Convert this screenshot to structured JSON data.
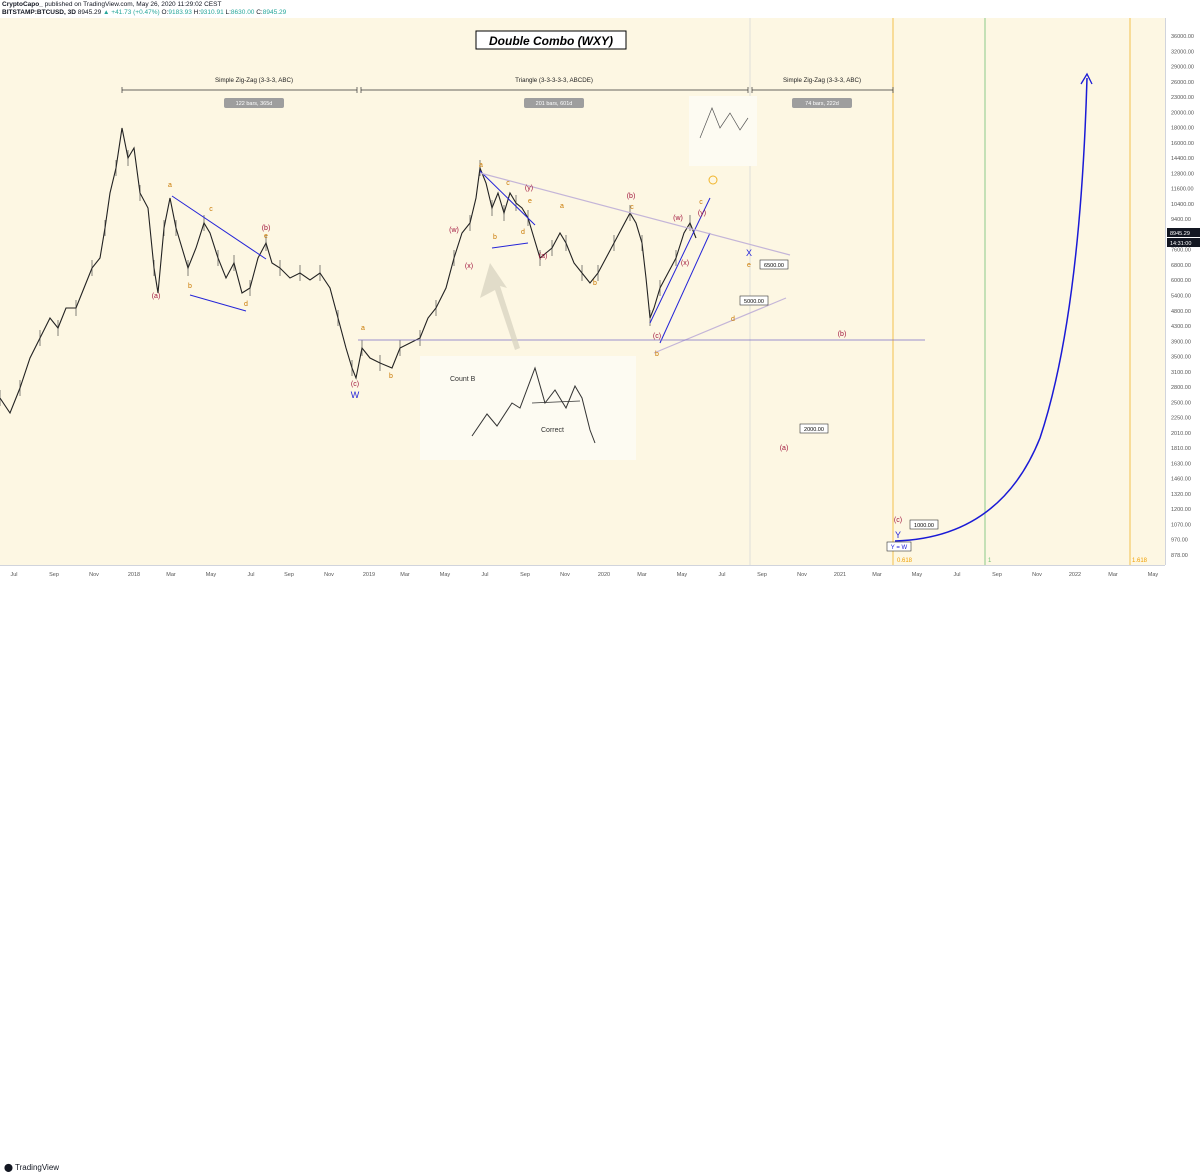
{
  "header": {
    "author": "CryptoCapo_",
    "published": "published on TradingView.com, May 26, 2020 11:29:02 CEST",
    "symbol": "BITSTAMP:BTCUSD, 3D",
    "last": "8945.29",
    "change": "▲ +41.73 (+0.47%)",
    "ohlc": {
      "o": "9183.93",
      "h": "9310.91",
      "l": "8630.00",
      "c": "8945.29"
    }
  },
  "footer": {
    "logo": "TradingView"
  },
  "chart_data": {
    "type": "line",
    "y_scale": "log",
    "title": "Double Combo (WXY)",
    "price_axis": [
      "36000.00",
      "32000.00",
      "29000.00",
      "26000.00",
      "23000.00",
      "20000.00",
      "18000.00",
      "16000.00",
      "14400.00",
      "12800.00",
      "11600.00",
      "10400.00",
      "9400.00",
      "8400.00",
      "7600.00",
      "6800.00",
      "6000.00",
      "5400.00",
      "4800.00",
      "4300.00",
      "3900.00",
      "3500.00",
      "3100.00",
      "2800.00",
      "2500.00",
      "2250.00",
      "2010.00",
      "1810.00",
      "1630.00",
      "1460.00",
      "1320.00",
      "1200.00",
      "1070.00",
      "970.00",
      "878.00"
    ],
    "time_axis": [
      "Jul",
      "Sep",
      "Nov",
      "2018",
      "Mar",
      "May",
      "Jul",
      "Sep",
      "Nov",
      "2019",
      "Mar",
      "May",
      "Jul",
      "Sep",
      "Nov",
      "2020",
      "Mar",
      "May",
      "Jul",
      "Sep",
      "Nov",
      "2021",
      "Mar",
      "May",
      "Jul",
      "Sep",
      "Nov",
      "2022",
      "Mar",
      "May"
    ],
    "price_badges": [
      "8945.29",
      "14:31:00"
    ],
    "ranges": [
      {
        "label": "Simple Zig-Zag (3-3-3, ABC)",
        "badge": "122 bars, 365d"
      },
      {
        "label": "Triangle (3-3-3-3-3, ABCDE)",
        "badge": "201 bars, 601d"
      },
      {
        "label": "Simple Zig-Zag (3-3-3, ABC)",
        "badge": "74 bars, 222d"
      }
    ],
    "targets": [
      "6500.00",
      "5000.00",
      "2000.00",
      "1000.00"
    ],
    "wave_labels": [
      "(a)",
      "a",
      "b",
      "c",
      "d",
      "e",
      "(b)",
      "(c)",
      "W",
      "(w)",
      "(x)",
      "(y)",
      "X",
      "Y",
      "Y = W"
    ],
    "fib_labels": [
      "0.618",
      "1",
      "1.618"
    ],
    "inset": {
      "count": "Count B",
      "correct": "Correct"
    }
  }
}
